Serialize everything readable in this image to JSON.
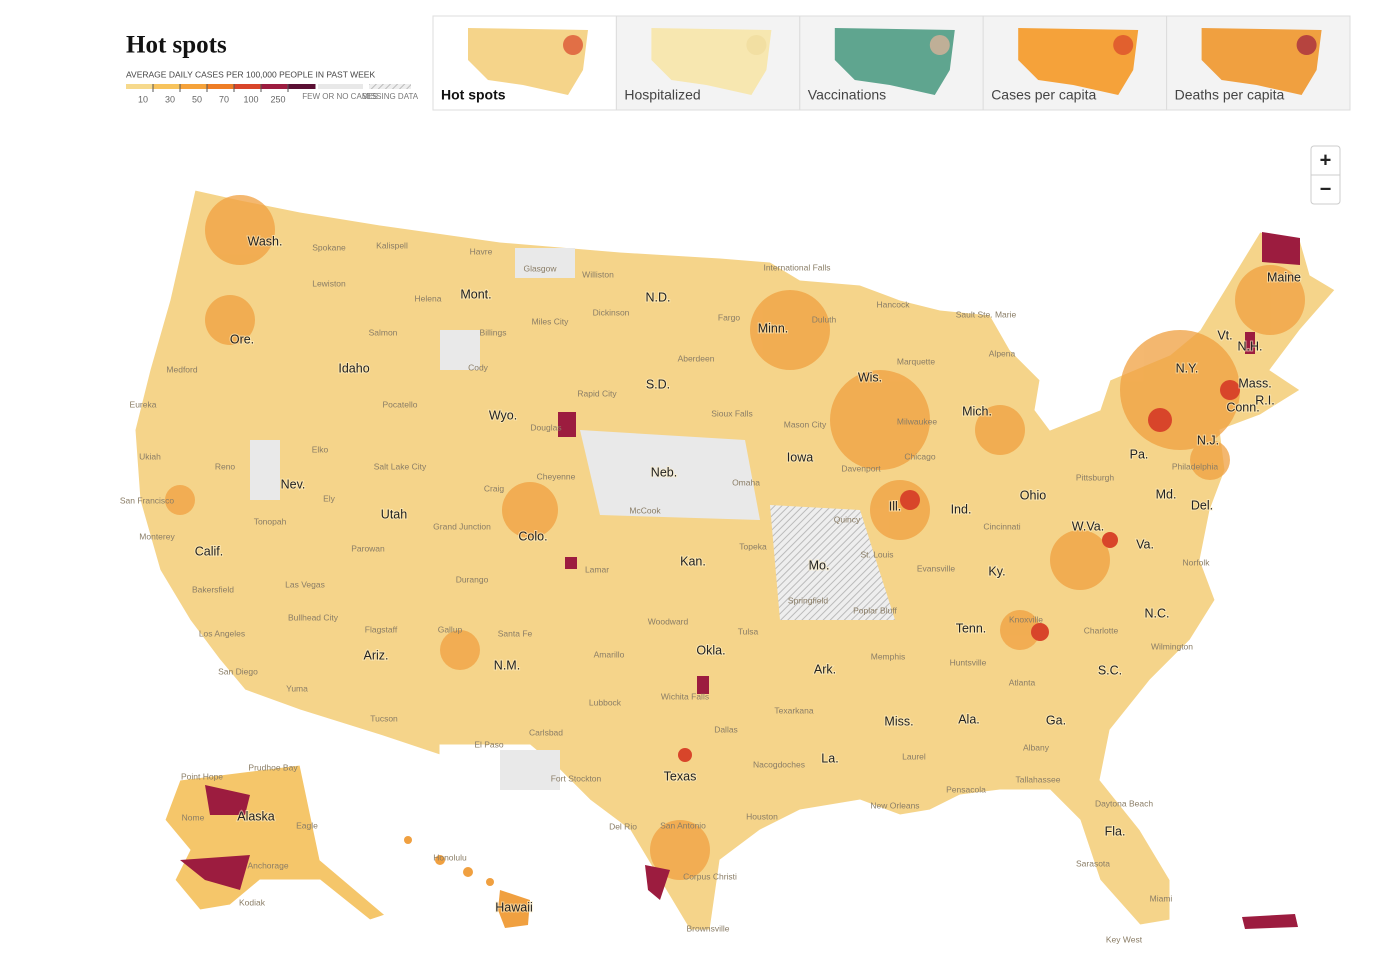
{
  "header": {
    "title": "Hot spots",
    "legend": {
      "caption": "AVERAGE DAILY CASES PER 100,000 PEOPLE IN PAST WEEK",
      "ticks": [
        10,
        30,
        50,
        70,
        100,
        250
      ],
      "colors": [
        "#f6d98c",
        "#f7c35c",
        "#f5a23a",
        "#ee7d25",
        "#d8452a",
        "#9c1c3f",
        "#5a0f33"
      ],
      "few": "FEW OR NO CASES",
      "missing": "MISSING DATA"
    }
  },
  "tabs": [
    {
      "label": "Hot spots",
      "active": true
    },
    {
      "label": "Hospitalized",
      "active": false
    },
    {
      "label": "Vaccinations",
      "active": false
    },
    {
      "label": "Cases per capita",
      "active": false
    },
    {
      "label": "Deaths per capita",
      "active": false
    }
  ],
  "zoom": {
    "in": "+",
    "out": "−"
  },
  "map": {
    "states": [
      "Wash.",
      "Mont.",
      "N.D.",
      "Minn.",
      "Ore.",
      "Idaho",
      "S.D.",
      "Wis.",
      "Mich.",
      "Wyo.",
      "Maine",
      "Vt.",
      "N.H.",
      "N.Y.",
      "Mass.",
      "R.I.",
      "Conn.",
      "N.J.",
      "Pa.",
      "Iowa",
      "Neb.",
      "Ill.",
      "Ind.",
      "Ohio",
      "Md.",
      "Del.",
      "Nev.",
      "Utah",
      "Colo.",
      "W.Va.",
      "Va.",
      "Kan.",
      "Mo.",
      "Ky.",
      "Calif.",
      "N.C.",
      "Tenn.",
      "Okla.",
      "Ariz.",
      "N.M.",
      "Ark.",
      "S.C.",
      "Miss.",
      "Ala.",
      "Ga.",
      "La.",
      "Texas",
      "Fla.",
      "Alaska",
      "Hawaii"
    ],
    "cities": [
      "Spokane",
      "Kalispell",
      "Havre",
      "Glasgow",
      "Williston",
      "International Falls",
      "Lewiston",
      "Helena",
      "Dickinson",
      "Fargo",
      "Duluth",
      "Miles City",
      "Salmon",
      "Billings",
      "Aberdeen",
      "Medford",
      "Cody",
      "Rapid City",
      "Pocatello",
      "Sioux Falls",
      "Eureka",
      "Douglas",
      "Mason City",
      "Milwaukee",
      "Elko",
      "Ukiah",
      "Reno",
      "Salt Lake City",
      "Cheyenne",
      "Omaha",
      "Ely",
      "Craig",
      "San Francisco",
      "McCook",
      "Tonopah",
      "Grand Junction",
      "Monterey",
      "Parowan",
      "Durango",
      "Lamar",
      "Topeka",
      "Bakersfield",
      "Las Vegas",
      "Springfield",
      "Bullhead City",
      "Flagstaff",
      "Gallup",
      "Santa Fe",
      "Woodward",
      "Tulsa",
      "Los Angeles",
      "Amarillo",
      "Memphis",
      "Huntsville",
      "San Diego",
      "Yuma",
      "Lubbock",
      "Wichita Falls",
      "Texarkana",
      "Atlanta",
      "Tucson",
      "Carlsbad",
      "Dallas",
      "Laurel",
      "Albany",
      "El Paso",
      "Nacogdoches",
      "Fort Stockton",
      "Tallahassee",
      "Pensacola",
      "New Orleans",
      "Houston",
      "Del Rio",
      "San Antonio",
      "Daytona Beach",
      "Corpus Christi",
      "Sarasota",
      "Miami",
      "Brownsville",
      "Key West",
      "Point Hope",
      "Prudhoe Bay",
      "Nome",
      "Eagle",
      "Anchorage",
      "Kodiak",
      "Honolulu",
      "Evansville",
      "Knoxville",
      "Charlotte",
      "Wilmington",
      "Norfolk",
      "Pittsburgh",
      "Cincinnati",
      "Philadelphia",
      "Sault Ste. Marie",
      "Alpena",
      "Marquette",
      "Hancock",
      "Chicago",
      "Davenport",
      "Quincy",
      "St. Louis",
      "Poplar Bluff"
    ]
  }
}
